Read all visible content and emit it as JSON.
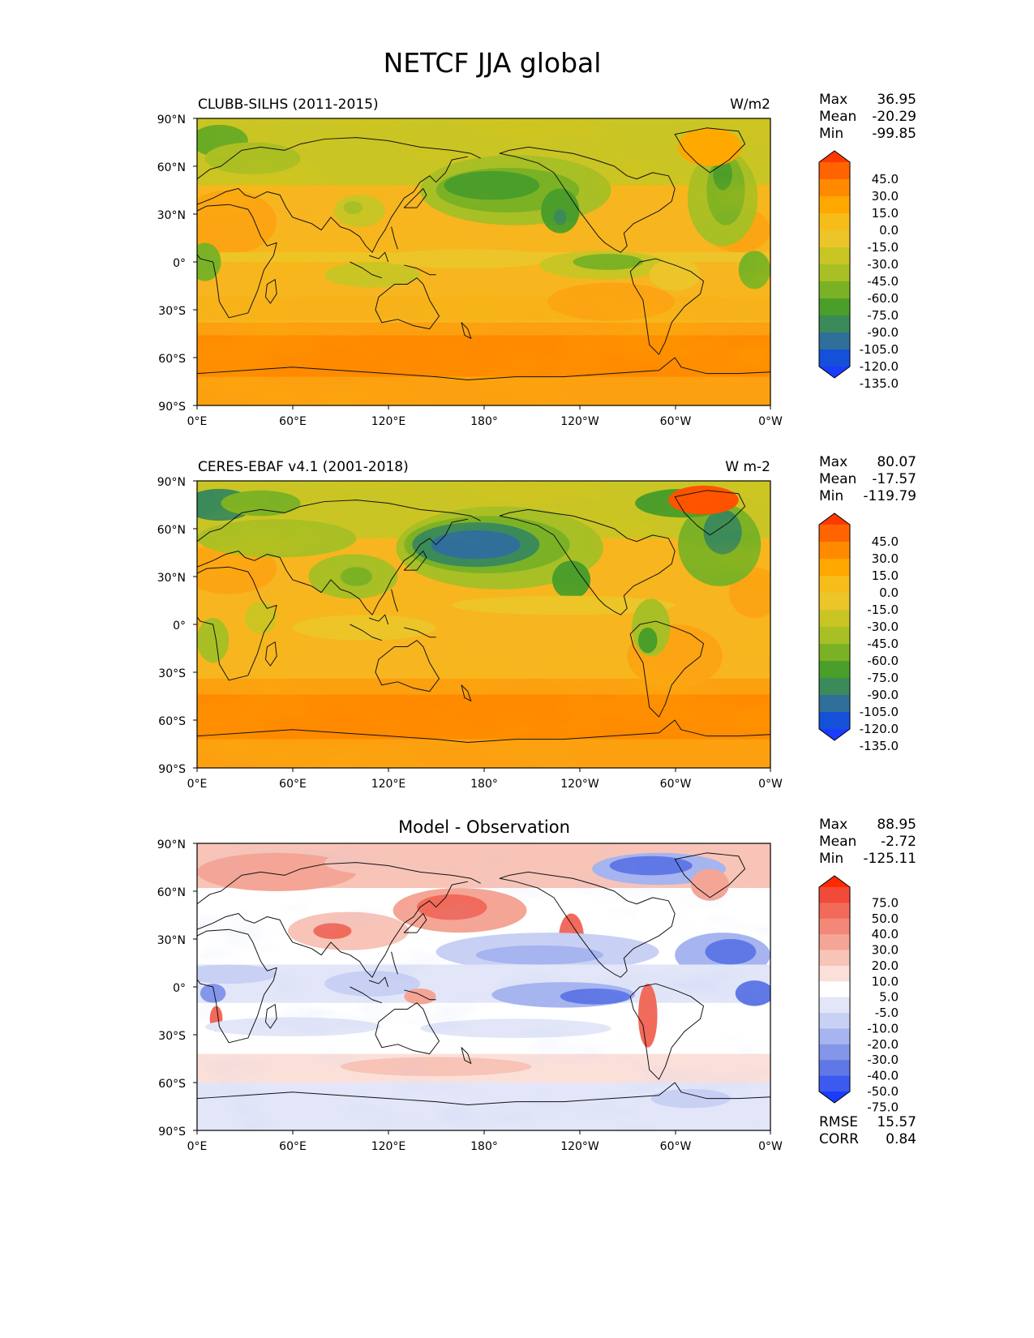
{
  "title": "NETCF JJA global",
  "panels": [
    {
      "left_title": "CLUBB-SILHS (2011-2015)",
      "center_title": "",
      "units": "W/m2",
      "stats": {
        "max_label": "Max",
        "max": "36.95",
        "mean_label": "Mean",
        "mean": "-20.29",
        "min_label": "Min",
        "min": "-99.85"
      },
      "colorbar": {
        "labels": [
          "45.0",
          "30.0",
          "15.0",
          "0.0",
          "-15.0",
          "-30.0",
          "-45.0",
          "-60.0",
          "-75.0",
          "-90.0",
          "-105.0",
          "-120.0",
          "-135.0"
        ],
        "colors": [
          "#ff3a00",
          "#ff6400",
          "#ff8a00",
          "#ffa800",
          "#f6bd1a",
          "#ecc52a",
          "#c9c525",
          "#a8bf25",
          "#7bb225",
          "#4b9e2a",
          "#3a8a5a",
          "#2f6f9a",
          "#1450d8",
          "#1a3cff"
        ]
      },
      "rmse": null
    },
    {
      "left_title": "CERES-EBAF v4.1 (2001-2018)",
      "center_title": "",
      "units": "W m-2",
      "stats": {
        "max_label": "Max",
        "max": "80.07",
        "mean_label": "Mean",
        "mean": "-17.57",
        "min_label": "Min",
        "min": "-119.79"
      },
      "colorbar": {
        "labels": [
          "45.0",
          "30.0",
          "15.0",
          "0.0",
          "-15.0",
          "-30.0",
          "-45.0",
          "-60.0",
          "-75.0",
          "-90.0",
          "-105.0",
          "-120.0",
          "-135.0"
        ],
        "colors": [
          "#ff3a00",
          "#ff6400",
          "#ff8a00",
          "#ffa800",
          "#f6bd1a",
          "#ecc52a",
          "#c9c525",
          "#a8bf25",
          "#7bb225",
          "#4b9e2a",
          "#3a8a5a",
          "#2f6f9a",
          "#1450d8",
          "#1a3cff"
        ]
      },
      "rmse": null
    },
    {
      "left_title": "",
      "center_title": "Model - Observation",
      "units": "",
      "stats": {
        "max_label": "Max",
        "max": "88.95",
        "mean_label": "Mean",
        "mean": "-2.72",
        "min_label": "Min",
        "min": "-125.11"
      },
      "colorbar": {
        "labels": [
          "75.0",
          "50.0",
          "40.0",
          "30.0",
          "20.0",
          "10.0",
          "5.0",
          "-5.0",
          "-10.0",
          "-20.0",
          "-30.0",
          "-40.0",
          "-50.0",
          "-75.0"
        ],
        "colors": [
          "#ff2a00",
          "#f24a3a",
          "#f26a5a",
          "#f38878",
          "#f5a595",
          "#f8c4b8",
          "#fbe0da",
          "#ffffff",
          "#e2e6f8",
          "#c8d0f4",
          "#a6b4ef",
          "#8396ea",
          "#5f78e6",
          "#3c5aee",
          "#1a3cff"
        ]
      },
      "rmse": {
        "rmse_label": "RMSE",
        "rmse": "15.57",
        "corr_label": "CORR",
        "corr": "0.84"
      }
    }
  ],
  "axes": {
    "lat_ticks": [
      "90°N",
      "60°N",
      "30°N",
      "0°",
      "30°S",
      "60°S",
      "90°S"
    ],
    "lon_ticks": [
      "0°E",
      "60°E",
      "120°E",
      "180°",
      "120°W",
      "60°W",
      "0°W"
    ]
  }
}
